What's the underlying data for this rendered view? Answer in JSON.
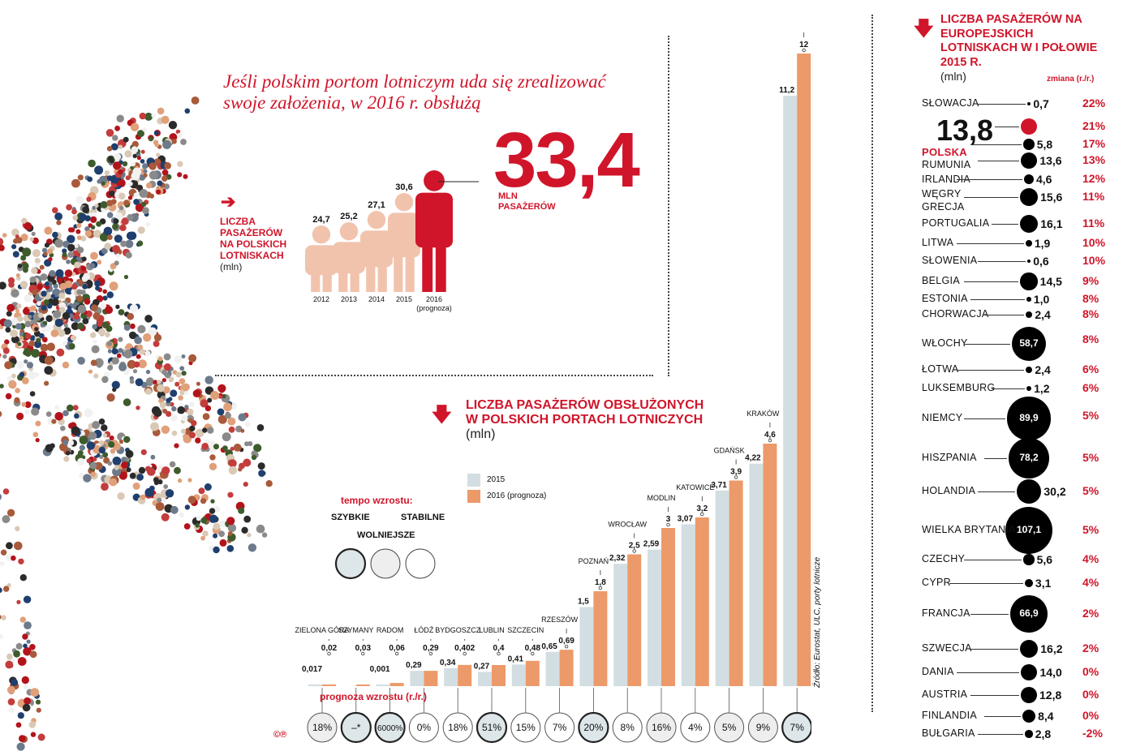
{
  "headline": "Jeśli polskim portom lotniczym uda się zrealizować swoje założenia, w 2016 r. obsłużą",
  "big_number": "33,4",
  "big_unit": "MLN PASAŻERÓW",
  "polish_airports_label": {
    "title": "LICZBA PASAŻERÓW NA POLSKICH LOTNISKACH",
    "unit": "(mln)"
  },
  "people_chart": {
    "years": [
      "2012",
      "2013",
      "2014",
      "2015",
      "2016"
    ],
    "values": [
      "24,7",
      "25,2",
      "27,1",
      "30,6"
    ],
    "forecast_note": "(prognoza)"
  },
  "bar_title": {
    "title": "LICZBA PASAŻERÓW OBSŁUŻONYCH W POLSKICH PORTACH LOTNICZYCH",
    "unit": "(mln)"
  },
  "legend": {
    "s2015": "2015",
    "s2016": "2016 (prognoza)"
  },
  "tempo": {
    "title": "tempo wzrostu:",
    "fast": "SZYBKIE",
    "medium": "WOLNIEJSZE",
    "stable": "STABILNE"
  },
  "growth_label": "prognoza wzrostu (r./r.)",
  "source": "Źródło: Eurostat, ULC, porty lotnicze",
  "copyright": "©℗",
  "chart_data": [
    {
      "type": "bar",
      "title": "LICZBA PASAŻERÓW OBSŁUŻONYCH W POLSKICH PORTACH LOTNICZYCH",
      "ylabel": "(mln)",
      "categories": [
        "ZIELONA GÓRA",
        "SZYMANY",
        "RADOM",
        "ŁÓDŹ",
        "BYDGOSZCZ",
        "LUBLIN",
        "SZCZECIN",
        "RZESZÓW",
        "POZNAŃ",
        "WROCŁAW",
        "MODLIN",
        "KATOWICE",
        "GDAŃSK",
        "KRAKÓW",
        "WARSZAWA"
      ],
      "series": [
        {
          "name": "2015",
          "color": "#d3dee2",
          "values": [
            0.017,
            0.0,
            0.001,
            0.29,
            0.34,
            0.27,
            0.41,
            0.65,
            1.5,
            2.32,
            2.59,
            3.07,
            3.71,
            4.22,
            11.2
          ]
        },
        {
          "name": "2016 (prognoza)",
          "color": "#ec9a6a",
          "values": [
            0.02,
            0.03,
            0.06,
            0.29,
            0.402,
            0.4,
            0.48,
            0.69,
            1.8,
            2.5,
            3.0,
            3.2,
            3.9,
            4.6,
            12.0
          ]
        }
      ],
      "labels_2015": [
        "0,017",
        "",
        "0,001",
        "0,29",
        "0,34",
        "0,27",
        "0,41",
        "0,65",
        "1,5",
        "2,32",
        "2,59",
        "3,07",
        "3,71",
        "4,22",
        "11,2"
      ],
      "labels_2016": [
        "0,02",
        "0,03",
        "0,06",
        "0,29",
        "0,402",
        "0,4",
        "0,48",
        "0,69",
        "1,8",
        "2,5",
        "3",
        "3,2",
        "3,9",
        "4,6",
        "12"
      ],
      "growth": [
        "18%",
        "–*",
        "6000%",
        "0%",
        "18%",
        "51%",
        "15%",
        "7%",
        "20%",
        "8%",
        "16%",
        "4%",
        "5%",
        "9%",
        "7%"
      ],
      "tempo": [
        "medium",
        "fast",
        "fast",
        "stable",
        "stable",
        "fast",
        "stable",
        "stable",
        "fast",
        "stable",
        "medium",
        "stable",
        "medium",
        "medium",
        "fast"
      ],
      "ylim": [
        0,
        12
      ]
    },
    {
      "type": "scatter",
      "title": "LICZBA PASAŻERÓW NA EUROPEJSKICH LOTNISKACH W I POŁOWIE 2015 R.",
      "unit": "(mln)",
      "change_label": "zmiana (r./r.)",
      "countries": [
        {
          "name": "SŁOWACJA",
          "value": "0,7",
          "v": 0.7,
          "pct": "22%"
        },
        {
          "name": "POLSKA",
          "value": "13,8",
          "v": 13.8,
          "pct": "21%"
        },
        {
          "name": "RUMUNIA",
          "value": "5,8",
          "v": 5.8,
          "pct": "17%"
        },
        {
          "name": "IRLANDIA",
          "value": "13,6",
          "v": 13.6,
          "pct": "13%"
        },
        {
          "name": "WĘGRY",
          "value": "4,6",
          "v": 4.6,
          "pct": "12%"
        },
        {
          "name": "GRECJA",
          "value": "15,6",
          "v": 15.6,
          "pct": "11%"
        },
        {
          "name": "PORTUGALIA",
          "value": "16,1",
          "v": 16.1,
          "pct": "11%"
        },
        {
          "name": "LITWA",
          "value": "1,9",
          "v": 1.9,
          "pct": "10%"
        },
        {
          "name": "SŁOWENIA",
          "value": "0,6",
          "v": 0.6,
          "pct": "10%"
        },
        {
          "name": "BELGIA",
          "value": "14,5",
          "v": 14.5,
          "pct": "9%"
        },
        {
          "name": "ESTONIA",
          "value": "1,0",
          "v": 1.0,
          "pct": "8%"
        },
        {
          "name": "CHORWACJA",
          "value": "2,4",
          "v": 2.4,
          "pct": "8%"
        },
        {
          "name": "WŁOCHY",
          "value": "58,7",
          "v": 58.7,
          "pct": "8%"
        },
        {
          "name": "ŁOTWA",
          "value": "2,4",
          "v": 2.4,
          "pct": "6%"
        },
        {
          "name": "LUKSEMBURG",
          "value": "1,2",
          "v": 1.2,
          "pct": "6%"
        },
        {
          "name": "NIEMCY",
          "value": "89,9",
          "v": 89.9,
          "pct": "5%"
        },
        {
          "name": "HISZPANIA",
          "value": "78,2",
          "v": 78.2,
          "pct": "5%"
        },
        {
          "name": "HOLANDIA",
          "value": "30,2",
          "v": 30.2,
          "pct": "5%"
        },
        {
          "name": "WIELKA BRYTANIA",
          "value": "107,1",
          "v": 107.1,
          "pct": "5%"
        },
        {
          "name": "CZECHY",
          "value": "5,6",
          "v": 5.6,
          "pct": "4%"
        },
        {
          "name": "CYPR",
          "value": "3,1",
          "v": 3.1,
          "pct": "4%"
        },
        {
          "name": "FRANCJA",
          "value": "66,9",
          "v": 66.9,
          "pct": "2%"
        },
        {
          "name": "SZWECJA",
          "value": "16,2",
          "v": 16.2,
          "pct": "2%"
        },
        {
          "name": "DANIA",
          "value": "14,0",
          "v": 14.0,
          "pct": "0%"
        },
        {
          "name": "AUSTRIA",
          "value": "12,8",
          "v": 12.8,
          "pct": "0%"
        },
        {
          "name": "FINLANDIA",
          "value": "8,4",
          "v": 8.4,
          "pct": "0%"
        },
        {
          "name": "BUŁGARIA",
          "value": "2,8",
          "v": 2.8,
          "pct": "-2%"
        }
      ]
    }
  ]
}
